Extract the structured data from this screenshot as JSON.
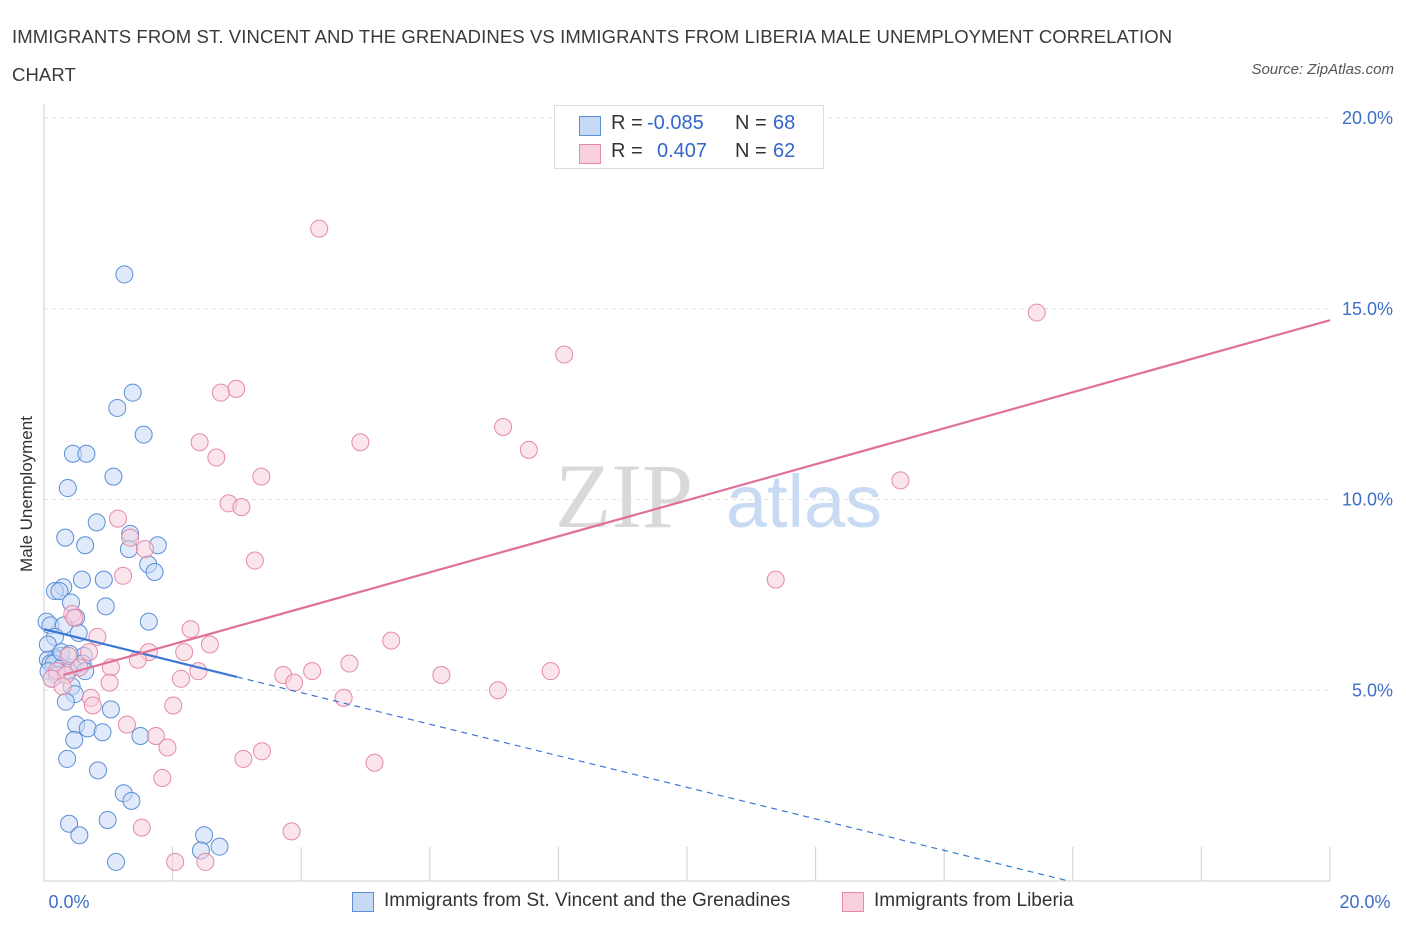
{
  "title": "IMMIGRANTS FROM ST. VINCENT AND THE GRENADINES VS IMMIGRANTS FROM LIBERIA MALE UNEMPLOYMENT CORRELATION CHART",
  "source": "Source: ZipAtlas.com",
  "watermark": {
    "zip": "ZIP",
    "atlas": "atlas"
  },
  "legend": {
    "r_label": "R =",
    "n_label": "N =",
    "series1": {
      "r": "-0.085",
      "n": "68"
    },
    "series2": {
      "r": "0.407",
      "n": "62"
    }
  },
  "colors": {
    "blue_fill": "#c6d9f5",
    "blue_stroke": "#5b8fd6",
    "blue_line": "#3a78d4",
    "pink_fill": "#f8cfdc",
    "pink_stroke": "#e58aa8",
    "pink_line": "#e0709a",
    "axis_text": "#3d6fc6",
    "grid": "#e2e2e2"
  },
  "chart_data": {
    "type": "scatter",
    "title": "IMMIGRANTS FROM ST. VINCENT AND THE GRENADINES VS IMMIGRANTS FROM LIBERIA MALE UNEMPLOYMENT CORRELATION CHART",
    "xlabel": "",
    "ylabel": "Male Unemployment",
    "xlim": [
      0,
      20
    ],
    "ylim": [
      0,
      20
    ],
    "x_tick_labels": [
      {
        "value": 0,
        "label": "0.0%"
      },
      {
        "value": 20,
        "label": "20.0%"
      }
    ],
    "y_tick_labels": [
      {
        "value": 5,
        "label": "5.0%"
      },
      {
        "value": 10,
        "label": "10.0%"
      },
      {
        "value": 15,
        "label": "15.0%"
      },
      {
        "value": 20,
        "label": "20.0%"
      }
    ],
    "series": [
      {
        "name": "Immigrants from St. Vincent and the Grenadines",
        "color": "blue",
        "r": -0.085,
        "n": 68,
        "trend": {
          "x0": 0.0,
          "y0": 6.6,
          "x1": 3.0,
          "y1": 5.35,
          "dashed_to_x": 20.0,
          "dashed_to_y": -1.68
        },
        "points": [
          [
            1.25,
            15.9
          ],
          [
            1.38,
            12.8
          ],
          [
            1.14,
            12.4
          ],
          [
            1.55,
            11.7
          ],
          [
            0.45,
            11.2
          ],
          [
            0.66,
            11.2
          ],
          [
            1.08,
            10.6
          ],
          [
            0.37,
            10.3
          ],
          [
            0.82,
            9.4
          ],
          [
            0.33,
            9.0
          ],
          [
            1.34,
            9.1
          ],
          [
            1.77,
            8.8
          ],
          [
            0.64,
            8.8
          ],
          [
            1.32,
            8.7
          ],
          [
            1.62,
            8.3
          ],
          [
            1.72,
            8.1
          ],
          [
            0.59,
            7.9
          ],
          [
            0.93,
            7.9
          ],
          [
            0.3,
            7.7
          ],
          [
            0.17,
            7.6
          ],
          [
            0.24,
            7.6
          ],
          [
            0.42,
            7.3
          ],
          [
            0.96,
            7.2
          ],
          [
            1.63,
            6.8
          ],
          [
            0.5,
            6.9
          ],
          [
            0.04,
            6.8
          ],
          [
            0.1,
            6.7
          ],
          [
            0.31,
            6.7
          ],
          [
            0.54,
            6.5
          ],
          [
            0.17,
            6.4
          ],
          [
            0.06,
            6.2
          ],
          [
            0.26,
            5.9
          ],
          [
            0.62,
            5.9
          ],
          [
            0.18,
            5.85
          ],
          [
            0.06,
            5.8
          ],
          [
            0.22,
            5.8
          ],
          [
            0.1,
            5.7
          ],
          [
            0.6,
            5.7
          ],
          [
            0.15,
            5.7
          ],
          [
            0.27,
            5.6
          ],
          [
            0.45,
            5.6
          ],
          [
            0.38,
            5.5
          ],
          [
            0.64,
            5.5
          ],
          [
            0.07,
            5.5
          ],
          [
            0.2,
            5.4
          ],
          [
            0.12,
            5.3
          ],
          [
            0.43,
            5.1
          ],
          [
            0.48,
            4.9
          ],
          [
            0.34,
            4.7
          ],
          [
            1.04,
            4.5
          ],
          [
            0.5,
            4.1
          ],
          [
            0.68,
            4.0
          ],
          [
            0.91,
            3.9
          ],
          [
            1.5,
            3.8
          ],
          [
            0.47,
            3.7
          ],
          [
            0.36,
            3.2
          ],
          [
            0.84,
            2.9
          ],
          [
            1.24,
            2.3
          ],
          [
            1.36,
            2.1
          ],
          [
            0.39,
            1.5
          ],
          [
            0.99,
            1.6
          ],
          [
            0.55,
            1.2
          ],
          [
            2.49,
            1.2
          ],
          [
            2.73,
            0.9
          ],
          [
            2.44,
            0.8
          ],
          [
            1.12,
            0.5
          ],
          [
            0.27,
            6.0
          ],
          [
            0.4,
            5.95
          ]
        ]
      },
      {
        "name": "Immigrants from Liberia",
        "color": "pink",
        "r": 0.407,
        "n": 62,
        "trend": {
          "x0": 0.3,
          "y0": 5.4,
          "x1": 20.0,
          "y1": 14.7
        },
        "points": [
          [
            4.28,
            17.1
          ],
          [
            15.44,
            14.9
          ],
          [
            8.09,
            13.8
          ],
          [
            2.99,
            12.9
          ],
          [
            2.75,
            12.8
          ],
          [
            7.14,
            11.9
          ],
          [
            2.42,
            11.5
          ],
          [
            4.92,
            11.5
          ],
          [
            7.54,
            11.3
          ],
          [
            2.68,
            11.1
          ],
          [
            3.38,
            10.6
          ],
          [
            13.32,
            10.5
          ],
          [
            2.87,
            9.9
          ],
          [
            3.07,
            9.8
          ],
          [
            1.15,
            9.5
          ],
          [
            1.34,
            9.0
          ],
          [
            1.57,
            8.7
          ],
          [
            3.28,
            8.4
          ],
          [
            1.23,
            8.0
          ],
          [
            11.38,
            7.9
          ],
          [
            0.44,
            7.0
          ],
          [
            0.47,
            6.9
          ],
          [
            2.28,
            6.6
          ],
          [
            5.4,
            6.3
          ],
          [
            2.58,
            6.2
          ],
          [
            0.83,
            6.4
          ],
          [
            1.63,
            6.0
          ],
          [
            2.18,
            6.0
          ],
          [
            0.7,
            6.0
          ],
          [
            0.38,
            5.9
          ],
          [
            1.46,
            5.8
          ],
          [
            4.75,
            5.7
          ],
          [
            1.04,
            5.6
          ],
          [
            0.55,
            5.6
          ],
          [
            0.2,
            5.5
          ],
          [
            2.4,
            5.5
          ],
          [
            4.17,
            5.5
          ],
          [
            7.88,
            5.5
          ],
          [
            0.34,
            5.4
          ],
          [
            3.72,
            5.4
          ],
          [
            6.18,
            5.4
          ],
          [
            2.13,
            5.3
          ],
          [
            0.12,
            5.3
          ],
          [
            1.02,
            5.2
          ],
          [
            0.29,
            5.1
          ],
          [
            3.89,
            5.2
          ],
          [
            7.06,
            5.0
          ],
          [
            4.66,
            4.8
          ],
          [
            0.73,
            4.8
          ],
          [
            2.01,
            4.6
          ],
          [
            0.76,
            4.6
          ],
          [
            1.29,
            4.1
          ],
          [
            1.74,
            3.8
          ],
          [
            1.92,
            3.5
          ],
          [
            3.39,
            3.4
          ],
          [
            3.1,
            3.2
          ],
          [
            5.14,
            3.1
          ],
          [
            1.84,
            2.7
          ],
          [
            1.52,
            1.4
          ],
          [
            3.85,
            1.3
          ],
          [
            2.04,
            0.5
          ],
          [
            2.51,
            0.5
          ]
        ]
      }
    ]
  },
  "bottom_legend": {
    "series1_label": "Immigrants from St. Vincent and the Grenadines",
    "series2_label": "Immigrants from Liberia"
  }
}
